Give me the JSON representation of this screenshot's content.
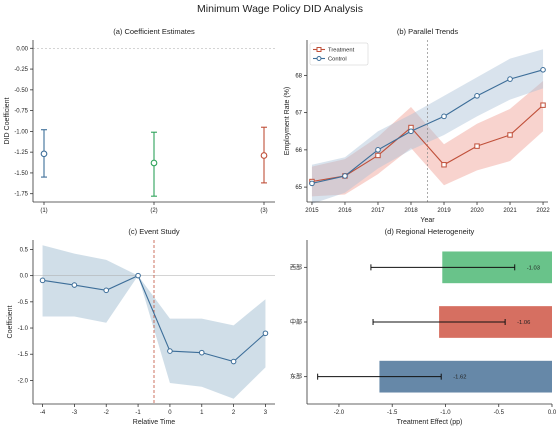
{
  "suptitle": "Minimum Wage Policy DID Analysis",
  "colors": {
    "blue": "#3d6e99",
    "green": "#2fa35b",
    "red": "#c0503a",
    "band_blue": "#aac2d6",
    "band_red": "#ef9e92",
    "green_bar": "#69c38a",
    "red_bar": "#d66f61",
    "blue_bar": "#6688a8"
  },
  "chart_data": [
    {
      "type": "scatter",
      "title": "(a) Coefficient Estimates",
      "xlabel": "",
      "ylabel": "DID Coefficient",
      "categories": [
        "(1)",
        "(2)",
        "(3)"
      ],
      "estimates": [
        -1.27,
        -1.38,
        -1.29
      ],
      "ci_low": [
        -1.55,
        -1.78,
        -1.62
      ],
      "ci_high": [
        -0.98,
        -1.01,
        -0.95
      ],
      "point_colors": [
        "#3d6e99",
        "#2fa35b",
        "#c0503a"
      ],
      "ylim": [
        -1.85,
        0.1
      ],
      "yticks": [
        0.0,
        -0.25,
        -0.5,
        -0.75,
        -1.0,
        -1.25,
        -1.5,
        -1.75
      ],
      "ytick_labels": [
        "0.00",
        "-0.25",
        "-0.50",
        "-0.75",
        "-1.00",
        "-1.25",
        "-1.50",
        "-1.75"
      ],
      "reference_line": 0
    },
    {
      "type": "line",
      "title": "(b) Parallel Trends",
      "xlabel": "Year",
      "ylabel": "Employment Rate (%)",
      "x": [
        2015,
        2016,
        2017,
        2018,
        2019,
        2020,
        2021,
        2022
      ],
      "x_labels": [
        "2015",
        "2016",
        "2017",
        "2018",
        "2019",
        "2020",
        "2021",
        "2022"
      ],
      "series": [
        {
          "name": "Treatment",
          "marker": "square",
          "color": "#c0503a",
          "values": [
            65.15,
            65.3,
            65.85,
            66.6,
            65.6,
            66.1,
            66.4,
            67.2
          ],
          "lower": [
            64.75,
            64.8,
            65.35,
            66.05,
            65.05,
            65.45,
            65.7,
            66.5
          ],
          "upper": [
            65.55,
            65.75,
            66.35,
            67.15,
            66.15,
            66.7,
            67.1,
            67.85
          ]
        },
        {
          "name": "Control",
          "marker": "circle",
          "color": "#3d6e99",
          "values": [
            65.1,
            65.3,
            66.0,
            66.5,
            66.9,
            67.45,
            67.9,
            68.15
          ],
          "lower": [
            64.55,
            64.85,
            65.5,
            66.0,
            66.4,
            66.9,
            67.35,
            67.65
          ],
          "upper": [
            65.6,
            65.8,
            66.5,
            66.95,
            67.45,
            67.95,
            68.45,
            68.7
          ]
        }
      ],
      "ylim": [
        64.6,
        68.95
      ],
      "yticks": [
        65,
        66,
        67,
        68
      ],
      "ytick_labels": [
        "65",
        "66",
        "67",
        "68"
      ],
      "policy_line_x": 2018.5,
      "legend": "top-left"
    },
    {
      "type": "line",
      "title": "(c) Event Study",
      "xlabel": "Relative Time",
      "ylabel": "Coefficient",
      "x": [
        -4,
        -3,
        -2,
        -1,
        0,
        1,
        2,
        3
      ],
      "x_labels": [
        "-4",
        "-3",
        "-2",
        "-1",
        "0",
        "1",
        "2",
        "3"
      ],
      "values": [
        -0.09,
        -0.18,
        -0.28,
        0.0,
        -1.44,
        -1.47,
        -1.64,
        -1.1
      ],
      "lower": [
        -0.78,
        -0.78,
        -0.9,
        0.0,
        -2.05,
        -2.12,
        -2.35,
        -1.75
      ],
      "upper": [
        0.58,
        0.42,
        0.3,
        0.0,
        -0.82,
        -0.82,
        -0.95,
        -0.45
      ],
      "ylim": [
        -2.45,
        0.68
      ],
      "yticks": [
        0.5,
        0.0,
        -0.5,
        -1.0,
        -1.5,
        -2.0
      ],
      "ytick_labels": [
        "0.5",
        "0.0",
        "-0.5",
        "-1.0",
        "-1.5",
        "-2.0"
      ],
      "reference_line": 0,
      "event_line_x": -0.5
    },
    {
      "type": "bar",
      "orientation": "horizontal",
      "title": "(d) Regional Heterogeneity",
      "xlabel": "Treatment Effect (pp)",
      "ylabel": "",
      "categories": [
        "西部",
        "中部",
        "东部"
      ],
      "values": [
        -1.03,
        -1.06,
        -1.62
      ],
      "ci_low": [
        -1.7,
        -1.68,
        -2.2
      ],
      "ci_high": [
        -0.35,
        -0.44,
        -1.04
      ],
      "value_labels": [
        "-1.03",
        "-1.06",
        "-1.62"
      ],
      "bar_colors": [
        "#69c38a",
        "#d66f61",
        "#6688a8"
      ],
      "xlim": [
        -2.3,
        0.0
      ],
      "xticks": [
        -2.0,
        -1.5,
        -1.0,
        -0.5,
        0.0
      ],
      "xtick_labels": [
        "-2.0",
        "-1.5",
        "-1.0",
        "-0.5",
        "0.0"
      ]
    }
  ]
}
